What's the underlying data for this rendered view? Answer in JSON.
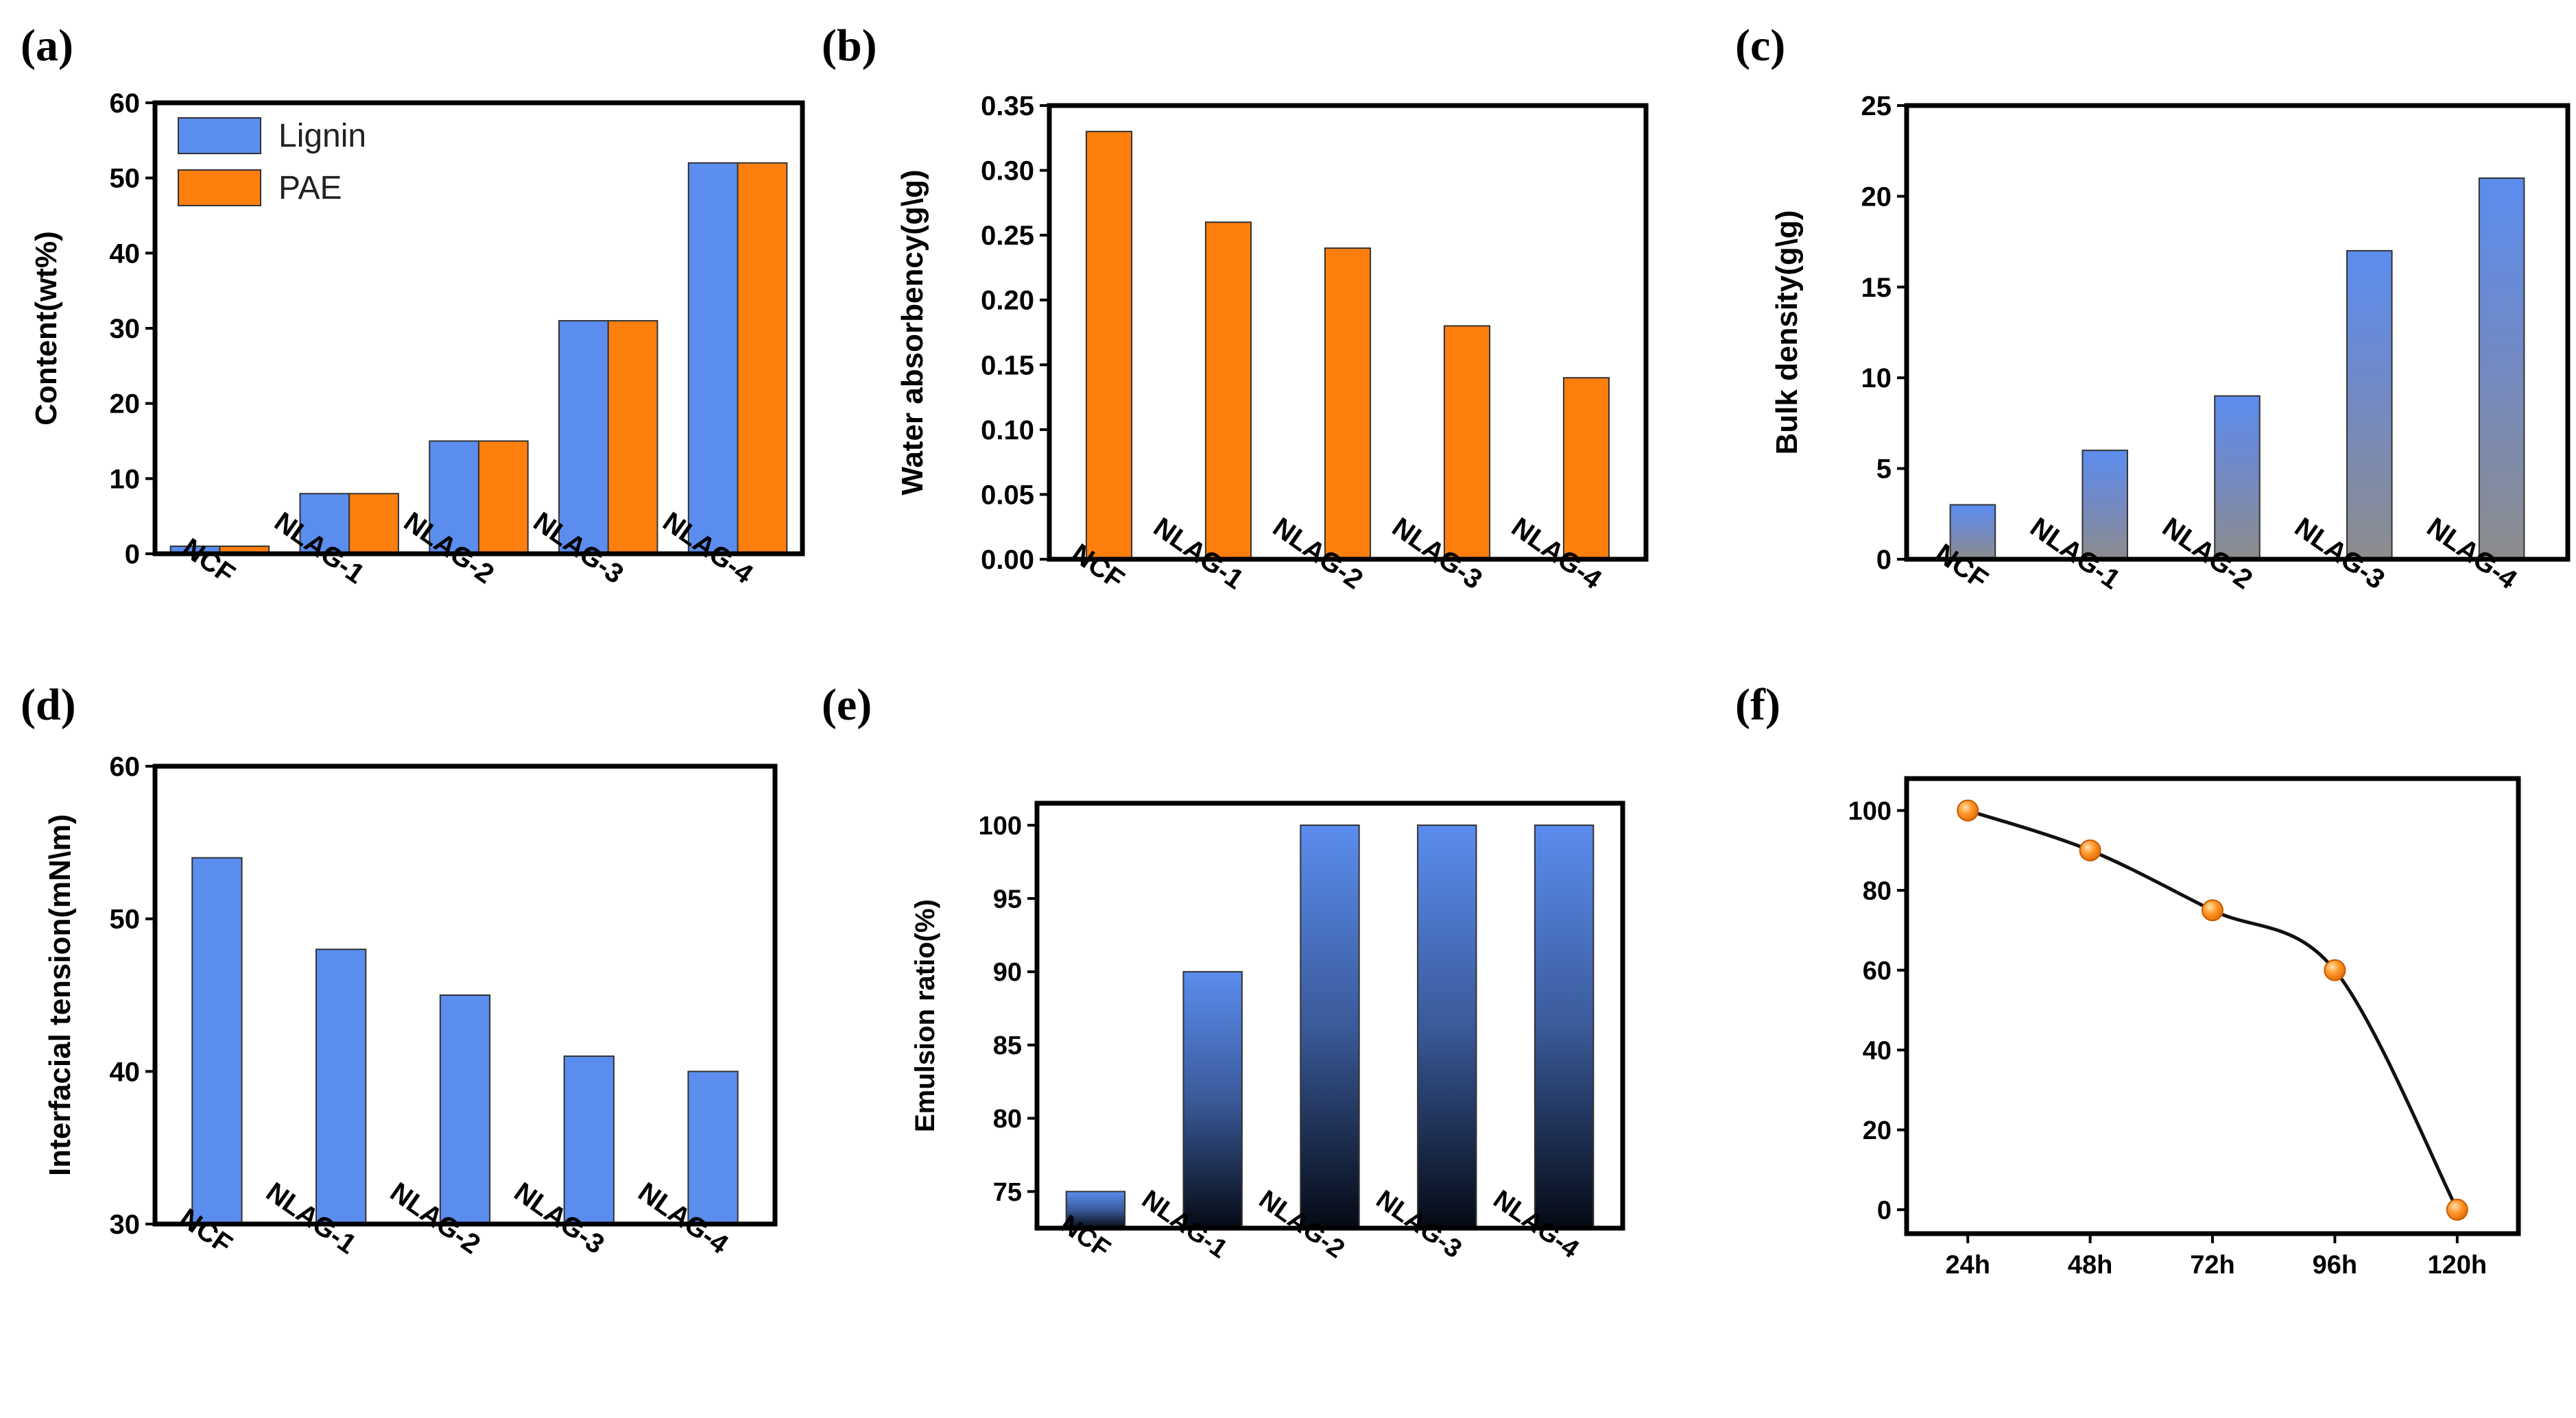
{
  "chart_data": [
    {
      "id": "a",
      "panel_label": "(a)",
      "type": "bar",
      "title": "",
      "xlabel": "",
      "ylabel": "Content(wt%)",
      "categories": [
        "NCF",
        "NLAG-1",
        "NLAG-2",
        "NLAG-3",
        "NLAG-4"
      ],
      "series": [
        {
          "name": "Lignin",
          "values": [
            1,
            8,
            15,
            31,
            52
          ]
        },
        {
          "name": "PAE",
          "values": [
            1,
            8,
            15,
            31,
            52
          ]
        }
      ],
      "ylim": [
        0,
        60
      ],
      "yticks": [
        0,
        10,
        20,
        30,
        40,
        50,
        60
      ],
      "legend": "top-left",
      "colors": {
        "Lignin": "#5b8def",
        "PAE": "#ff7f0e"
      }
    },
    {
      "id": "b",
      "panel_label": "(b)",
      "type": "bar",
      "title": "",
      "xlabel": "",
      "ylabel": "Water absorbency(g\\g)",
      "categories": [
        "NCF",
        "NLAG-1",
        "NLAG-2",
        "NLAG-3",
        "NLAG-4"
      ],
      "values": [
        0.33,
        0.26,
        0.24,
        0.18,
        0.14
      ],
      "ylim": [
        0,
        0.35
      ],
      "yticks": [
        "0.00",
        "0.05",
        "0.10",
        "0.15",
        "0.20",
        "0.25",
        "0.30",
        "0.35"
      ],
      "colors": {
        "bar": "#ff7f0e"
      }
    },
    {
      "id": "c",
      "panel_label": "(c)",
      "type": "bar",
      "title": "",
      "xlabel": "",
      "ylabel": "Bulk density(g\\g)",
      "categories": [
        "NCF",
        "NLAG-1",
        "NLAG-2",
        "NLAG-3",
        "NLAG-4"
      ],
      "values": [
        3,
        6,
        9,
        17,
        21
      ],
      "ylim": [
        0,
        25
      ],
      "yticks": [
        0,
        5,
        10,
        15,
        20,
        25
      ],
      "colors": {
        "top": "#5b8def",
        "bottom": "#8c8c8c"
      }
    },
    {
      "id": "d",
      "panel_label": "(d)",
      "type": "bar",
      "title": "",
      "xlabel": "",
      "ylabel": "Interfacial tension(mN\\m)",
      "categories": [
        "NCF",
        "NLAG-1",
        "NLAG-2",
        "NLAG-3",
        "NLAG-4"
      ],
      "values": [
        54,
        48,
        45,
        41,
        40
      ],
      "ylim": [
        30,
        60
      ],
      "yticks": [
        30,
        40,
        50,
        60
      ],
      "colors": {
        "bar": "#5b8def"
      }
    },
    {
      "id": "e",
      "panel_label": "(e)",
      "type": "bar",
      "title": "",
      "xlabel": "",
      "ylabel": "Emulsion ratio(%)",
      "categories": [
        "NCF",
        "NLAG-1",
        "NLAG-2",
        "NLAG-3",
        "NLAG-4"
      ],
      "values": [
        75,
        90,
        100,
        100,
        100
      ],
      "ylim": [
        72.5,
        101.5
      ],
      "yticks": [
        75,
        80,
        85,
        90,
        95,
        100
      ],
      "colors": {
        "top": "#5b8def",
        "bottom": "#050a14"
      }
    },
    {
      "id": "f",
      "panel_label": "(f)",
      "type": "line",
      "title": "",
      "xlabel": "",
      "ylabel": "",
      "categories": [
        "24h",
        "48h",
        "72h",
        "96h",
        "120h"
      ],
      "values": [
        100,
        90,
        75,
        60,
        0
      ],
      "ylim": [
        -6,
        108
      ],
      "yticks": [
        0,
        20,
        40,
        60,
        80,
        100
      ],
      "colors": {
        "line": "#111111",
        "marker": "#ff8c1a"
      }
    }
  ]
}
